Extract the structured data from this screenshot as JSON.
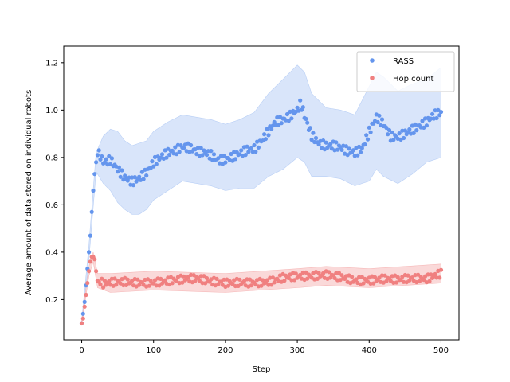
{
  "chart_data": {
    "type": "scatter",
    "title": "",
    "xlabel": "Step",
    "ylabel": "Average amount of data stored on individual robots",
    "xlim": [
      -25,
      525
    ],
    "ylim": [
      0.03,
      1.27
    ],
    "xticks": [
      0,
      100,
      200,
      300,
      400,
      500
    ],
    "yticks": [
      0.2,
      0.4,
      0.6,
      0.8,
      1.0,
      1.2
    ],
    "ytick_labels": [
      "0.2",
      "0.4",
      "0.6",
      "0.8",
      "1.0",
      "1.2"
    ],
    "grid": false,
    "legend_position": "top-right",
    "series": [
      {
        "name": "RASS",
        "color": "#6495ED",
        "band_color": "#B9CFF5",
        "points": [
          [
            0,
            0.1
          ],
          [
            2,
            0.14
          ],
          [
            4,
            0.19
          ],
          [
            6,
            0.26
          ],
          [
            8,
            0.33
          ],
          [
            10,
            0.4
          ],
          [
            12,
            0.47
          ],
          [
            14,
            0.57
          ],
          [
            16,
            0.66
          ],
          [
            18,
            0.73
          ],
          [
            20,
            0.78
          ],
          [
            22,
            0.81
          ],
          [
            24,
            0.83
          ],
          [
            30,
            0.79
          ],
          [
            40,
            0.8
          ],
          [
            50,
            0.76
          ],
          [
            60,
            0.72
          ],
          [
            70,
            0.7
          ],
          [
            80,
            0.71
          ],
          [
            90,
            0.73
          ],
          [
            100,
            0.77
          ],
          [
            110,
            0.79
          ],
          [
            120,
            0.81
          ],
          [
            130,
            0.82
          ],
          [
            140,
            0.84
          ],
          [
            150,
            0.84
          ],
          [
            160,
            0.83
          ],
          [
            170,
            0.83
          ],
          [
            180,
            0.82
          ],
          [
            190,
            0.8
          ],
          [
            200,
            0.8
          ],
          [
            210,
            0.81
          ],
          [
            220,
            0.82
          ],
          [
            230,
            0.83
          ],
          [
            240,
            0.83
          ],
          [
            250,
            0.86
          ],
          [
            260,
            0.9
          ],
          [
            270,
            0.94
          ],
          [
            280,
            0.95
          ],
          [
            290,
            0.97
          ],
          [
            300,
            1.0
          ],
          [
            305,
            1.03
          ],
          [
            310,
            0.98
          ],
          [
            320,
            0.9
          ],
          [
            330,
            0.87
          ],
          [
            340,
            0.86
          ],
          [
            350,
            0.86
          ],
          [
            360,
            0.85
          ],
          [
            370,
            0.83
          ],
          [
            380,
            0.82
          ],
          [
            390,
            0.83
          ],
          [
            400,
            0.9
          ],
          [
            410,
            0.96
          ],
          [
            420,
            0.93
          ],
          [
            430,
            0.88
          ],
          [
            440,
            0.88
          ],
          [
            450,
            0.9
          ],
          [
            460,
            0.92
          ],
          [
            470,
            0.94
          ],
          [
            480,
            0.96
          ],
          [
            490,
            0.99
          ],
          [
            500,
            1.0
          ]
        ],
        "band": [
          [
            0,
            0.09,
            0.11
          ],
          [
            10,
            0.37,
            0.43
          ],
          [
            20,
            0.74,
            0.82
          ],
          [
            30,
            0.69,
            0.89
          ],
          [
            40,
            0.66,
            0.92
          ],
          [
            50,
            0.61,
            0.91
          ],
          [
            60,
            0.58,
            0.87
          ],
          [
            70,
            0.56,
            0.85
          ],
          [
            80,
            0.56,
            0.86
          ],
          [
            90,
            0.58,
            0.87
          ],
          [
            100,
            0.62,
            0.91
          ],
          [
            120,
            0.66,
            0.95
          ],
          [
            140,
            0.7,
            0.98
          ],
          [
            160,
            0.69,
            0.97
          ],
          [
            180,
            0.68,
            0.96
          ],
          [
            200,
            0.66,
            0.94
          ],
          [
            220,
            0.67,
            0.96
          ],
          [
            240,
            0.67,
            0.99
          ],
          [
            260,
            0.72,
            1.07
          ],
          [
            280,
            0.75,
            1.13
          ],
          [
            300,
            0.8,
            1.19
          ],
          [
            310,
            0.78,
            1.16
          ],
          [
            320,
            0.72,
            1.07
          ],
          [
            340,
            0.72,
            1.01
          ],
          [
            360,
            0.71,
            1.0
          ],
          [
            380,
            0.68,
            0.98
          ],
          [
            400,
            0.7,
            1.1
          ],
          [
            410,
            0.75,
            1.16
          ],
          [
            420,
            0.72,
            1.14
          ],
          [
            440,
            0.69,
            1.08
          ],
          [
            460,
            0.73,
            1.11
          ],
          [
            480,
            0.78,
            1.13
          ],
          [
            500,
            0.8,
            1.18
          ]
        ]
      },
      {
        "name": "Hop count",
        "color": "#F08080",
        "band_color": "#F6B9B9",
        "points": [
          [
            0,
            0.1
          ],
          [
            2,
            0.12
          ],
          [
            4,
            0.17
          ],
          [
            6,
            0.22
          ],
          [
            8,
            0.27
          ],
          [
            10,
            0.32
          ],
          [
            12,
            0.36
          ],
          [
            14,
            0.38
          ],
          [
            16,
            0.38
          ],
          [
            18,
            0.37
          ],
          [
            20,
            0.32
          ],
          [
            22,
            0.28
          ],
          [
            30,
            0.26
          ],
          [
            40,
            0.27
          ],
          [
            60,
            0.28
          ],
          [
            80,
            0.28
          ],
          [
            100,
            0.28
          ],
          [
            120,
            0.28
          ],
          [
            140,
            0.28
          ],
          [
            160,
            0.28
          ],
          [
            180,
            0.27
          ],
          [
            200,
            0.27
          ],
          [
            220,
            0.28
          ],
          [
            240,
            0.28
          ],
          [
            260,
            0.28
          ],
          [
            280,
            0.29
          ],
          [
            300,
            0.29
          ],
          [
            320,
            0.29
          ],
          [
            340,
            0.3
          ],
          [
            360,
            0.3
          ],
          [
            380,
            0.29
          ],
          [
            400,
            0.29
          ],
          [
            420,
            0.29
          ],
          [
            440,
            0.28
          ],
          [
            460,
            0.28
          ],
          [
            480,
            0.28
          ],
          [
            500,
            0.31
          ]
        ],
        "band": [
          [
            0,
            0.09,
            0.11
          ],
          [
            10,
            0.3,
            0.34
          ],
          [
            16,
            0.36,
            0.4
          ],
          [
            22,
            0.25,
            0.31
          ],
          [
            40,
            0.23,
            0.31
          ],
          [
            100,
            0.24,
            0.32
          ],
          [
            200,
            0.23,
            0.31
          ],
          [
            300,
            0.25,
            0.33
          ],
          [
            340,
            0.26,
            0.34
          ],
          [
            400,
            0.25,
            0.33
          ],
          [
            500,
            0.27,
            0.35
          ]
        ]
      }
    ]
  }
}
